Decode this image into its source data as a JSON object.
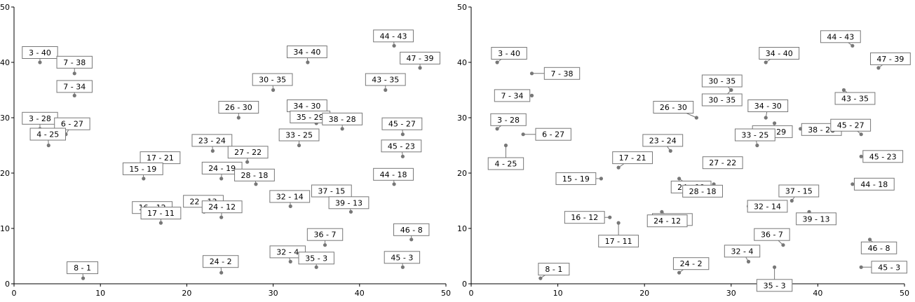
{
  "chart_data": [
    {
      "type": "scatter",
      "xlim": [
        0,
        50
      ],
      "ylim": [
        0,
        50
      ],
      "xticks": [
        "0",
        "10",
        "20",
        "30",
        "40",
        "50"
      ],
      "yticks": [
        "0",
        "10",
        "20",
        "30",
        "40",
        "50"
      ],
      "grid": false,
      "point_color": "#777777",
      "points": [
        {
          "x": 3,
          "y": 40,
          "label": "3 - 40"
        },
        {
          "x": 7,
          "y": 38,
          "label": "7 - 38"
        },
        {
          "x": 7,
          "y": 34,
          "label": "7 - 34"
        },
        {
          "x": 3,
          "y": 28,
          "label": "3 - 28"
        },
        {
          "x": 6,
          "y": 27,
          "label": "6 - 27"
        },
        {
          "x": 4,
          "y": 25,
          "label": "4 - 25"
        },
        {
          "x": 17,
          "y": 21,
          "label": "17 - 21"
        },
        {
          "x": 15,
          "y": 19,
          "label": "15 - 19"
        },
        {
          "x": 16,
          "y": 12,
          "label": "16 - 12"
        },
        {
          "x": 17,
          "y": 11,
          "label": "17 - 11"
        },
        {
          "x": 8,
          "y": 1,
          "label": "8 - 1"
        },
        {
          "x": 26,
          "y": 30,
          "label": "26 - 30"
        },
        {
          "x": 30,
          "y": 35,
          "label": "30 - 35"
        },
        {
          "x": 34,
          "y": 40,
          "label": "34 - 40"
        },
        {
          "x": 23,
          "y": 24,
          "label": "23 - 24"
        },
        {
          "x": 27,
          "y": 22,
          "label": "27 - 22"
        },
        {
          "x": 24,
          "y": 19,
          "label": "24 - 19"
        },
        {
          "x": 28,
          "y": 18,
          "label": "28 - 18"
        },
        {
          "x": 22,
          "y": 13,
          "label": "22 - 13"
        },
        {
          "x": 24,
          "y": 12,
          "label": "24 - 12"
        },
        {
          "x": 24,
          "y": 2,
          "label": "24 - 2"
        },
        {
          "x": 34,
          "y": 30,
          "label": "34 - 30"
        },
        {
          "x": 35,
          "y": 29,
          "label": "35 - 29"
        },
        {
          "x": 38,
          "y": 28,
          "label": "38 - 28"
        },
        {
          "x": 33,
          "y": 25,
          "label": "33 - 25"
        },
        {
          "x": 32,
          "y": 14,
          "label": "32 - 14"
        },
        {
          "x": 37,
          "y": 15,
          "label": "37 - 15"
        },
        {
          "x": 39,
          "y": 13,
          "label": "39 - 13"
        },
        {
          "x": 36,
          "y": 7,
          "label": "36 - 7"
        },
        {
          "x": 32,
          "y": 4,
          "label": "32 - 4"
        },
        {
          "x": 35,
          "y": 3,
          "label": "35 - 3"
        },
        {
          "x": 44,
          "y": 43,
          "label": "44 - 43"
        },
        {
          "x": 47,
          "y": 39,
          "label": "47 - 39"
        },
        {
          "x": 43,
          "y": 35,
          "label": "43 - 35"
        },
        {
          "x": 45,
          "y": 27,
          "label": "45 - 27"
        },
        {
          "x": 45,
          "y": 23,
          "label": "45 - 23"
        },
        {
          "x": 44,
          "y": 18,
          "label": "44 - 18"
        },
        {
          "x": 46,
          "y": 8,
          "label": "46 - 8"
        },
        {
          "x": 45,
          "y": 3,
          "label": "45 - 3"
        }
      ]
    },
    {
      "type": "scatter",
      "xlim": [
        0,
        50
      ],
      "ylim": [
        0,
        50
      ],
      "xticks": [
        "0",
        "10",
        "20",
        "30",
        "40",
        "50"
      ],
      "yticks": [
        "0",
        "10",
        "20",
        "30",
        "40",
        "50"
      ],
      "grid": false,
      "point_color": "#777777",
      "points": [
        {
          "x": 3,
          "y": 40,
          "label": "3 - 40"
        },
        {
          "x": 7,
          "y": 38,
          "label": "7 - 38"
        },
        {
          "x": 7,
          "y": 34,
          "label": "7 - 34"
        },
        {
          "x": 3,
          "y": 28,
          "label": "3 - 28"
        },
        {
          "x": 6,
          "y": 27,
          "label": "6 - 27"
        },
        {
          "x": 4,
          "y": 25,
          "label": "4 - 25"
        },
        {
          "x": 17,
          "y": 21,
          "label": "17 - 21"
        },
        {
          "x": 15,
          "y": 19,
          "label": "15 - 19"
        },
        {
          "x": 16,
          "y": 12,
          "label": "16 - 12"
        },
        {
          "x": 17,
          "y": 11,
          "label": "17 - 11"
        },
        {
          "x": 8,
          "y": 1,
          "label": "8 - 1"
        },
        {
          "x": 26,
          "y": 30,
          "label": "26 - 30"
        },
        {
          "x": 30,
          "y": 35,
          "label": "30 - 35"
        },
        {
          "x": 30,
          "y": 35,
          "label": "30 - 35"
        },
        {
          "x": 34,
          "y": 40,
          "label": "34 - 40"
        },
        {
          "x": 23,
          "y": 24,
          "label": "23 - 24"
        },
        {
          "x": 27,
          "y": 22,
          "label": "27 - 22"
        },
        {
          "x": 24,
          "y": 19,
          "label": "24 - 19"
        },
        {
          "x": 28,
          "y": 18,
          "label": "28 - 18"
        },
        {
          "x": 22,
          "y": 13,
          "label": "22 - 13"
        },
        {
          "x": 24,
          "y": 12,
          "label": "24 - 12"
        },
        {
          "x": 24,
          "y": 2,
          "label": "24 - 2"
        },
        {
          "x": 34,
          "y": 30,
          "label": "34 - 30"
        },
        {
          "x": 35,
          "y": 29,
          "label": "35 - 29"
        },
        {
          "x": 38,
          "y": 28,
          "label": "38 - 28"
        },
        {
          "x": 33,
          "y": 25,
          "label": "33 - 25"
        },
        {
          "x": 32,
          "y": 14,
          "label": "32 - 14"
        },
        {
          "x": 37,
          "y": 15,
          "label": "37 - 15"
        },
        {
          "x": 39,
          "y": 13,
          "label": "39 - 13"
        },
        {
          "x": 36,
          "y": 7,
          "label": "36 - 7"
        },
        {
          "x": 32,
          "y": 4,
          "label": "32 - 4"
        },
        {
          "x": 35,
          "y": 3,
          "label": "35 - 3"
        },
        {
          "x": 44,
          "y": 43,
          "label": "44 - 43"
        },
        {
          "x": 47,
          "y": 39,
          "label": "47 - 39"
        },
        {
          "x": 43,
          "y": 35,
          "label": "43 - 35"
        },
        {
          "x": 45,
          "y": 27,
          "label": "45 - 27"
        },
        {
          "x": 45,
          "y": 23,
          "label": "45 - 23"
        },
        {
          "x": 44,
          "y": 18,
          "label": "44 - 18"
        },
        {
          "x": 46,
          "y": 8,
          "label": "46 - 8"
        },
        {
          "x": 45,
          "y": 3,
          "label": "45 - 3"
        }
      ]
    }
  ]
}
